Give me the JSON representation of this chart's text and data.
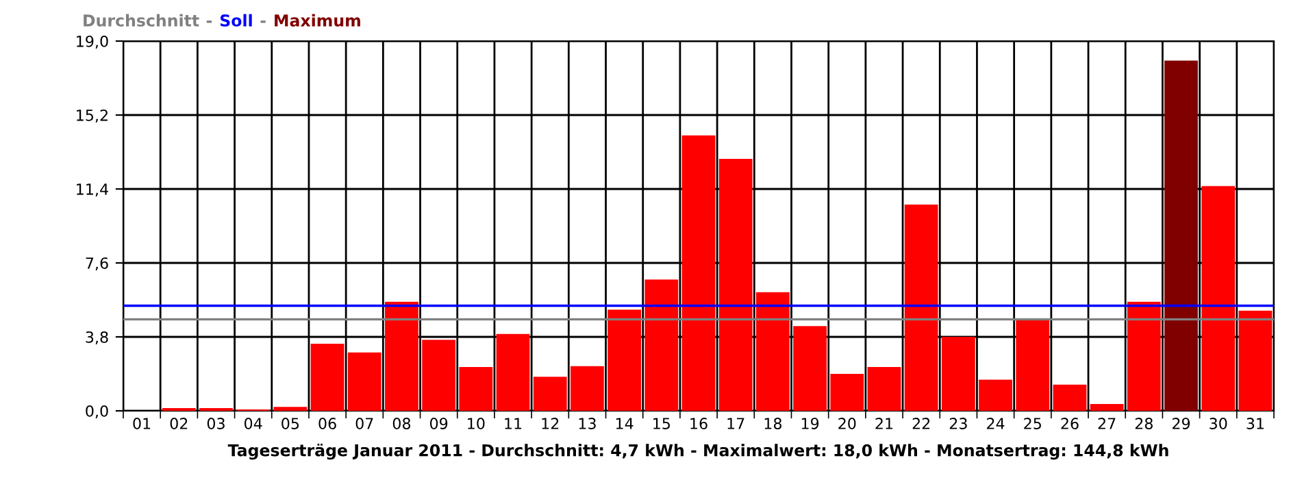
{
  "chart_data": {
    "type": "bar",
    "xlabel": "Tageserträge Januar 2011 - Durchschnitt: 4,7 kWh - Maximalwert: 18,0 kWh - Monatsertrag: 144,8 kWh",
    "categories": [
      "01",
      "02",
      "03",
      "04",
      "05",
      "06",
      "07",
      "08",
      "09",
      "10",
      "11",
      "12",
      "13",
      "14",
      "15",
      "16",
      "17",
      "18",
      "19",
      "20",
      "21",
      "22",
      "23",
      "24",
      "25",
      "26",
      "27",
      "28",
      "29",
      "30",
      "31"
    ],
    "values": [
      0,
      0.14,
      0.14,
      0.07,
      0.2,
      3.45,
      3.0,
      5.6,
      3.65,
      2.25,
      3.95,
      1.75,
      2.3,
      5.2,
      6.75,
      14.15,
      12.95,
      6.1,
      4.35,
      1.9,
      2.25,
      10.6,
      3.8,
      1.6,
      4.7,
      1.35,
      0.35,
      5.6,
      18.0,
      11.55,
      5.15
    ],
    "colors": [
      "#ff0000",
      "#ff0000",
      "#ff0000",
      "#ff0000",
      "#ff0000",
      "#ff0000",
      "#ff0000",
      "#ff0000",
      "#ff0000",
      "#ff0000",
      "#ff0000",
      "#ff0000",
      "#ff0000",
      "#ff0000",
      "#ff0000",
      "#ff0000",
      "#ff0000",
      "#ff0000",
      "#ff0000",
      "#ff0000",
      "#ff0000",
      "#ff0000",
      "#ff0000",
      "#ff0000",
      "#ff0000",
      "#ff0000",
      "#ff0000",
      "#ff0000",
      "#800000",
      "#ff0000",
      "#ff0000"
    ],
    "ylim": [
      0,
      19.0
    ],
    "yticks": [
      {
        "value": 0,
        "label": "0,0"
      },
      {
        "value": 3.8,
        "label": "3,8"
      },
      {
        "value": 7.6,
        "label": "7,6"
      },
      {
        "value": 11.4,
        "label": "11,4"
      },
      {
        "value": 15.2,
        "label": "15,2"
      },
      {
        "value": 19.0,
        "label": "19,0"
      }
    ],
    "ref_lines": [
      {
        "axis": "y",
        "value": 4.7,
        "label": "Durchschnitt",
        "color": "#808080"
      },
      {
        "axis": "y",
        "value": 5.4,
        "label": "Soll",
        "color": "#0000ff"
      }
    ],
    "annotations": [
      "-",
      "-",
      "Maximum"
    ],
    "grid": true
  }
}
